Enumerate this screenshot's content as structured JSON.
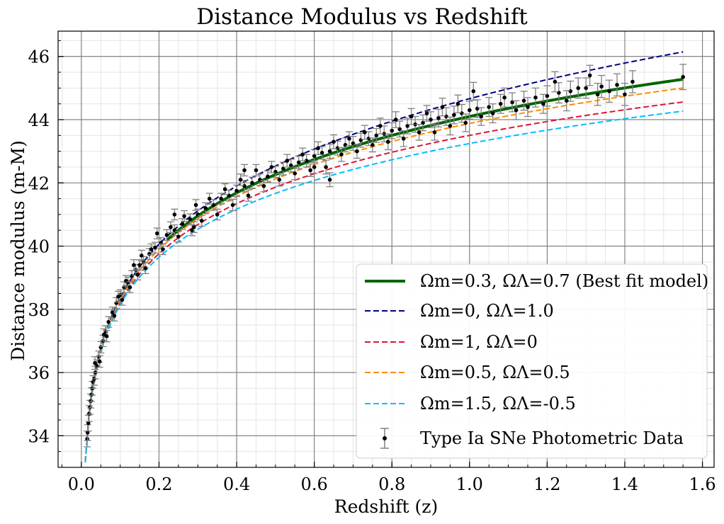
{
  "chart_data": {
    "type": "scatter",
    "title": "Distance Modulus vs Redshift",
    "xlabel": "Redshift (z)",
    "ylabel": "Distance modulus (m-M)",
    "xlim": [
      -0.06,
      1.63
    ],
    "ylim": [
      33.0,
      46.8
    ],
    "xticks": [
      "0.0",
      "0.2",
      "0.4",
      "0.6",
      "0.8",
      "1.0",
      "1.2",
      "1.4",
      "1.6"
    ],
    "yticks": [
      "34",
      "36",
      "38",
      "40",
      "42",
      "44",
      "46"
    ],
    "grid": true,
    "legend_position": "bottom-right",
    "series": [
      {
        "name": "Ωm=0.3, ΩΛ=0.7 (Best fit model)",
        "color": "#006400",
        "style": "solid",
        "Om": 0.3,
        "OL": 0.7,
        "x_range": [
          0.22,
          1.55
        ]
      },
      {
        "name": "Ωm=0, ΩΛ=1.0",
        "color": "#000080",
        "style": "dashed",
        "Om": 0.0,
        "OL": 1.0,
        "x_range": [
          0.01,
          1.55
        ]
      },
      {
        "name": "Ωm=1, ΩΛ=0",
        "color": "#dc143c",
        "style": "dashed",
        "Om": 1.0,
        "OL": 0.0,
        "x_range": [
          0.01,
          1.55
        ]
      },
      {
        "name": "Ωm=0.5, ΩΛ=0.5",
        "color": "#ff8c00",
        "style": "dashed",
        "Om": 0.5,
        "OL": 0.5,
        "x_range": [
          0.01,
          1.55
        ]
      },
      {
        "name": "Ωm=1.5, ΩΛ=-0.5",
        "color": "#00bfff",
        "style": "dashed",
        "Om": 1.5,
        "OL": -0.5,
        "x_range": [
          0.01,
          1.55
        ]
      }
    ],
    "scatter_series": {
      "name": "Type Ia SNe Photometric Data",
      "color": "#000000",
      "errorbar_color": "#808080",
      "points": [
        [
          0.015,
          33.9,
          0.25
        ],
        [
          0.016,
          34.1,
          0.25
        ],
        [
          0.018,
          34.4,
          0.25
        ],
        [
          0.02,
          34.7,
          0.25
        ],
        [
          0.022,
          34.9,
          0.22
        ],
        [
          0.024,
          35.1,
          0.22
        ],
        [
          0.026,
          35.3,
          0.22
        ],
        [
          0.028,
          35.5,
          0.22
        ],
        [
          0.03,
          35.7,
          0.2
        ],
        [
          0.033,
          35.8,
          0.2
        ],
        [
          0.036,
          36.0,
          0.2
        ],
        [
          0.04,
          36.2,
          0.2
        ],
        [
          0.045,
          36.5,
          0.18
        ],
        [
          0.05,
          36.8,
          0.18
        ],
        [
          0.056,
          37.0,
          0.18
        ],
        [
          0.062,
          37.3,
          0.18
        ],
        [
          0.07,
          37.6,
          0.17
        ],
        [
          0.08,
          37.9,
          0.17
        ],
        [
          0.09,
          38.2,
          0.17
        ],
        [
          0.1,
          38.45,
          0.17
        ],
        [
          0.11,
          38.7,
          0.17
        ],
        [
          0.12,
          38.85,
          0.17
        ],
        [
          0.13,
          39.05,
          0.17
        ],
        [
          0.14,
          39.25,
          0.17
        ],
        [
          0.15,
          39.4,
          0.17
        ],
        [
          0.16,
          39.5,
          0.17
        ],
        [
          0.175,
          39.75,
          0.17
        ],
        [
          0.19,
          39.95,
          0.17
        ],
        [
          0.205,
          40.1,
          0.17
        ],
        [
          0.22,
          40.35,
          0.17
        ],
        [
          0.24,
          40.5,
          0.17
        ],
        [
          0.26,
          40.7,
          0.17
        ],
        [
          0.28,
          40.85,
          0.17
        ],
        [
          0.3,
          41.0,
          0.17
        ],
        [
          0.32,
          41.2,
          0.17
        ],
        [
          0.34,
          41.3,
          0.17
        ],
        [
          0.36,
          41.5,
          0.17
        ],
        [
          0.38,
          41.6,
          0.17
        ],
        [
          0.4,
          41.75,
          0.18
        ],
        [
          0.42,
          41.9,
          0.18
        ],
        [
          0.44,
          42.0,
          0.18
        ],
        [
          0.46,
          42.1,
          0.18
        ],
        [
          0.48,
          42.2,
          0.18
        ],
        [
          0.5,
          42.35,
          0.18
        ],
        [
          0.52,
          42.45,
          0.2
        ],
        [
          0.54,
          42.55,
          0.2
        ],
        [
          0.56,
          42.65,
          0.2
        ],
        [
          0.58,
          42.7,
          0.2
        ],
        [
          0.6,
          42.85,
          0.2
        ],
        [
          0.62,
          42.95,
          0.2
        ],
        [
          0.64,
          43.0,
          0.22
        ],
        [
          0.66,
          43.1,
          0.22
        ],
        [
          0.68,
          43.2,
          0.22
        ],
        [
          0.7,
          43.25,
          0.22
        ],
        [
          0.72,
          43.35,
          0.22
        ],
        [
          0.74,
          43.4,
          0.22
        ],
        [
          0.76,
          43.5,
          0.22
        ],
        [
          0.78,
          43.55,
          0.25
        ],
        [
          0.8,
          43.65,
          0.25
        ],
        [
          0.82,
          43.7,
          0.25
        ],
        [
          0.84,
          43.8,
          0.25
        ],
        [
          0.86,
          43.85,
          0.25
        ],
        [
          0.88,
          43.9,
          0.25
        ],
        [
          0.9,
          44.0,
          0.25
        ],
        [
          0.92,
          44.05,
          0.28
        ],
        [
          0.94,
          44.1,
          0.28
        ],
        [
          0.96,
          44.15,
          0.28
        ],
        [
          0.98,
          44.2,
          0.28
        ],
        [
          1.0,
          44.3,
          0.28
        ],
        [
          1.02,
          44.35,
          0.28
        ],
        [
          1.05,
          44.4,
          0.3
        ],
        [
          1.08,
          44.5,
          0.3
        ],
        [
          1.11,
          44.55,
          0.3
        ],
        [
          1.14,
          44.6,
          0.3
        ],
        [
          1.17,
          44.7,
          0.3
        ],
        [
          1.2,
          44.75,
          0.32
        ],
        [
          1.23,
          44.85,
          0.32
        ],
        [
          1.26,
          44.9,
          0.32
        ],
        [
          1.3,
          45.0,
          0.32
        ],
        [
          1.34,
          45.05,
          0.35
        ],
        [
          1.38,
          45.1,
          0.35
        ],
        [
          1.42,
          45.2,
          0.35
        ],
        [
          1.55,
          45.35,
          0.4
        ],
        [
          0.035,
          36.3,
          0.2
        ],
        [
          0.047,
          36.35,
          0.18
        ],
        [
          0.058,
          37.2,
          0.18
        ],
        [
          0.065,
          37.15,
          0.18
        ],
        [
          0.085,
          37.8,
          0.17
        ],
        [
          0.095,
          38.4,
          0.17
        ],
        [
          0.105,
          38.3,
          0.17
        ],
        [
          0.115,
          38.9,
          0.17
        ],
        [
          0.125,
          38.7,
          0.17
        ],
        [
          0.135,
          39.4,
          0.17
        ],
        [
          0.145,
          39.1,
          0.17
        ],
        [
          0.155,
          39.7,
          0.17
        ],
        [
          0.165,
          39.3,
          0.17
        ],
        [
          0.18,
          39.9,
          0.17
        ],
        [
          0.195,
          40.4,
          0.17
        ],
        [
          0.21,
          39.9,
          0.17
        ],
        [
          0.23,
          40.6,
          0.17
        ],
        [
          0.25,
          40.3,
          0.17
        ],
        [
          0.265,
          40.95,
          0.17
        ],
        [
          0.285,
          40.5,
          0.17
        ],
        [
          0.295,
          41.3,
          0.17
        ],
        [
          0.31,
          40.8,
          0.17
        ],
        [
          0.33,
          41.5,
          0.17
        ],
        [
          0.35,
          41.0,
          0.17
        ],
        [
          0.37,
          41.8,
          0.17
        ],
        [
          0.39,
          41.3,
          0.18
        ],
        [
          0.41,
          42.1,
          0.18
        ],
        [
          0.43,
          41.6,
          0.18
        ],
        [
          0.45,
          42.4,
          0.18
        ],
        [
          0.47,
          41.9,
          0.18
        ],
        [
          0.49,
          42.5,
          0.18
        ],
        [
          0.51,
          42.1,
          0.2
        ],
        [
          0.53,
          42.7,
          0.2
        ],
        [
          0.55,
          42.3,
          0.2
        ],
        [
          0.57,
          42.9,
          0.2
        ],
        [
          0.59,
          42.4,
          0.2
        ],
        [
          0.61,
          43.1,
          0.2
        ],
        [
          0.63,
          42.5,
          0.22
        ],
        [
          0.65,
          43.3,
          0.22
        ],
        [
          0.67,
          42.9,
          0.22
        ],
        [
          0.69,
          43.4,
          0.22
        ],
        [
          0.71,
          43.0,
          0.22
        ],
        [
          0.73,
          43.6,
          0.22
        ],
        [
          0.75,
          43.2,
          0.22
        ],
        [
          0.77,
          43.8,
          0.25
        ],
        [
          0.79,
          43.3,
          0.25
        ],
        [
          0.81,
          44.0,
          0.25
        ],
        [
          0.83,
          43.4,
          0.25
        ],
        [
          0.85,
          44.1,
          0.25
        ],
        [
          0.87,
          43.6,
          0.25
        ],
        [
          0.89,
          44.2,
          0.25
        ],
        [
          0.91,
          43.6,
          0.25
        ],
        [
          0.93,
          44.4,
          0.28
        ],
        [
          0.95,
          43.8,
          0.28
        ],
        [
          0.97,
          44.5,
          0.28
        ],
        [
          0.99,
          43.9,
          0.28
        ],
        [
          1.01,
          44.9,
          0.28
        ],
        [
          1.03,
          44.1,
          0.28
        ],
        [
          1.06,
          44.2,
          0.3
        ],
        [
          1.09,
          44.7,
          0.3
        ],
        [
          1.12,
          44.3,
          0.3
        ],
        [
          1.15,
          44.4,
          0.3
        ],
        [
          1.19,
          44.5,
          0.3
        ],
        [
          1.22,
          45.2,
          0.32
        ],
        [
          1.25,
          44.6,
          0.32
        ],
        [
          1.28,
          45.0,
          0.32
        ],
        [
          1.31,
          45.4,
          0.32
        ],
        [
          1.33,
          44.8,
          0.35
        ],
        [
          1.36,
          44.9,
          0.35
        ],
        [
          1.4,
          44.8,
          0.35
        ],
        [
          0.64,
          42.1,
          0.22
        ],
        [
          0.6,
          42.5,
          0.2
        ],
        [
          0.42,
          42.4,
          0.18
        ],
        [
          0.29,
          40.6,
          0.17
        ],
        [
          0.24,
          41.0,
          0.17
        ]
      ]
    }
  }
}
